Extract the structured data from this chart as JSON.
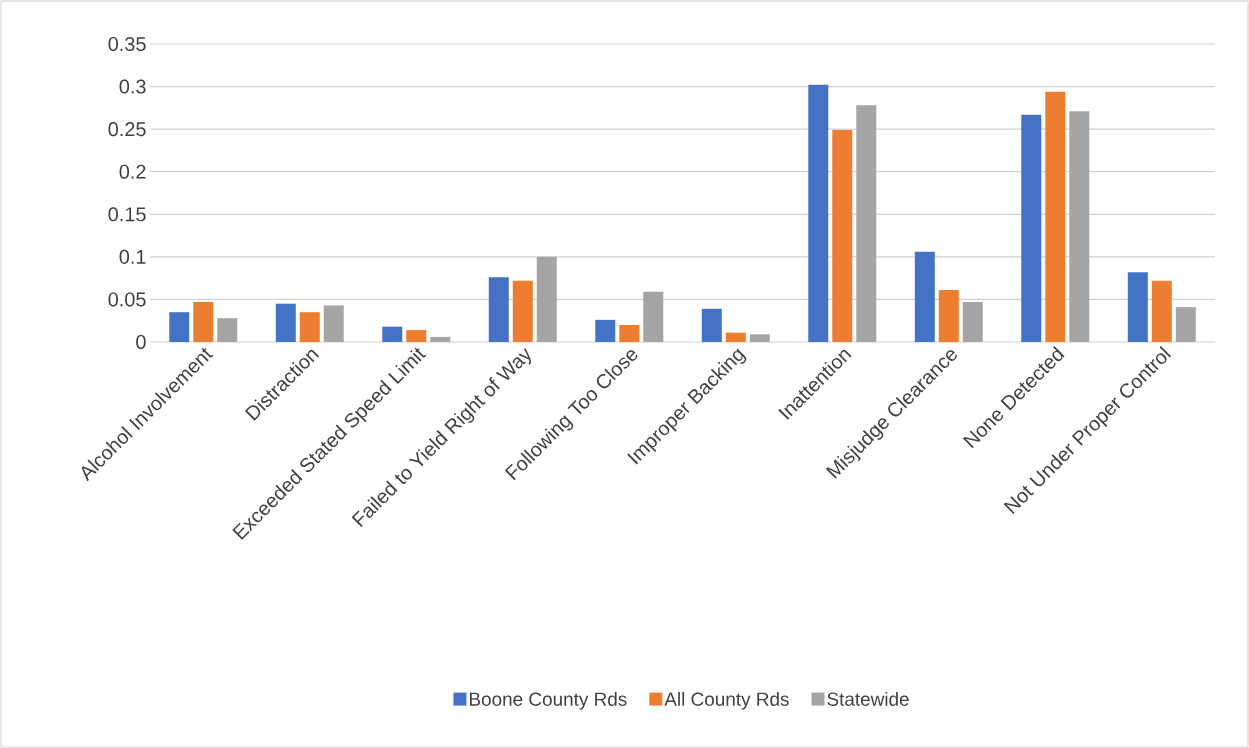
{
  "chart_data": {
    "type": "bar",
    "categories": [
      "Alcohol Involvement",
      "Distraction",
      "Exceeded Stated Speed Limit",
      "Failed to Yield  Right of Way",
      "Following Too Close",
      "Improper Backing",
      "Inattention",
      "Misjudge Clearance",
      "None Detected",
      "Not Under Proper Control"
    ],
    "series": [
      {
        "name": "Boone County Rds",
        "color": "#4472c4",
        "values": [
          0.035,
          0.045,
          0.018,
          0.076,
          0.026,
          0.039,
          0.302,
          0.106,
          0.267,
          0.082
        ]
      },
      {
        "name": "All County Rds",
        "color": "#ed7d31",
        "values": [
          0.047,
          0.035,
          0.014,
          0.072,
          0.02,
          0.011,
          0.249,
          0.061,
          0.294,
          0.072
        ]
      },
      {
        "name": "Statewide",
        "color": "#a5a5a5",
        "values": [
          0.028,
          0.043,
          0.006,
          0.1,
          0.059,
          0.009,
          0.278,
          0.047,
          0.271,
          0.041
        ]
      }
    ],
    "ylim": [
      0,
      0.35
    ],
    "yticks": [
      0,
      0.05,
      0.1,
      0.15,
      0.2,
      0.25,
      0.3,
      0.35
    ],
    "grid": "y",
    "legend": "bottom"
  }
}
